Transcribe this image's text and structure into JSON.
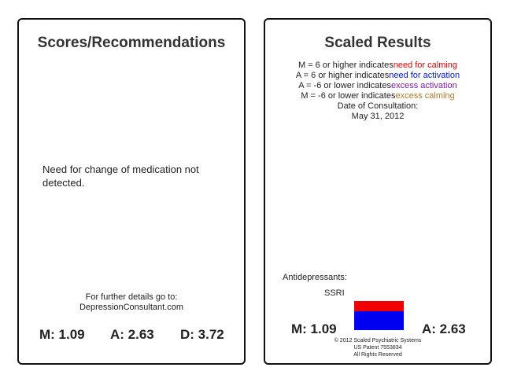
{
  "left_panel": {
    "title": "Scores/Recommendations",
    "message": "Need for change of medication not detected.",
    "details": [
      "For further details go to:",
      "DepressionConsultant.com"
    ],
    "scores": [
      "M: 1.09",
      "A: 2.63",
      "D: 3.72"
    ]
  },
  "right_panel": {
    "title": "Scaled Results",
    "legend": [
      {
        "text": "M = 6 or higher indicates",
        "highlight": "need for calming"
      },
      {
        "text": "A = 6 or higher indicates",
        "highlight": "need for activation"
      },
      {
        "text": "A = -6 or lower indicates",
        "highlight": "excess activation"
      },
      {
        "text": "M = -6 or lower indicates",
        "highlight": "excess calming"
      }
    ],
    "date_label": "Date of Consultation:",
    "date": "May 31, 2012",
    "section_label": "Antidepressants:",
    "drug_class": "SSRI",
    "scores": [
      "M: 1.09",
      "A: 2.63"
    ],
    "footer": [
      "© 2012 Scaled Psychiatric Systems",
      "US Patent 7553834",
      "All Rights Reserved"
    ]
  }
}
